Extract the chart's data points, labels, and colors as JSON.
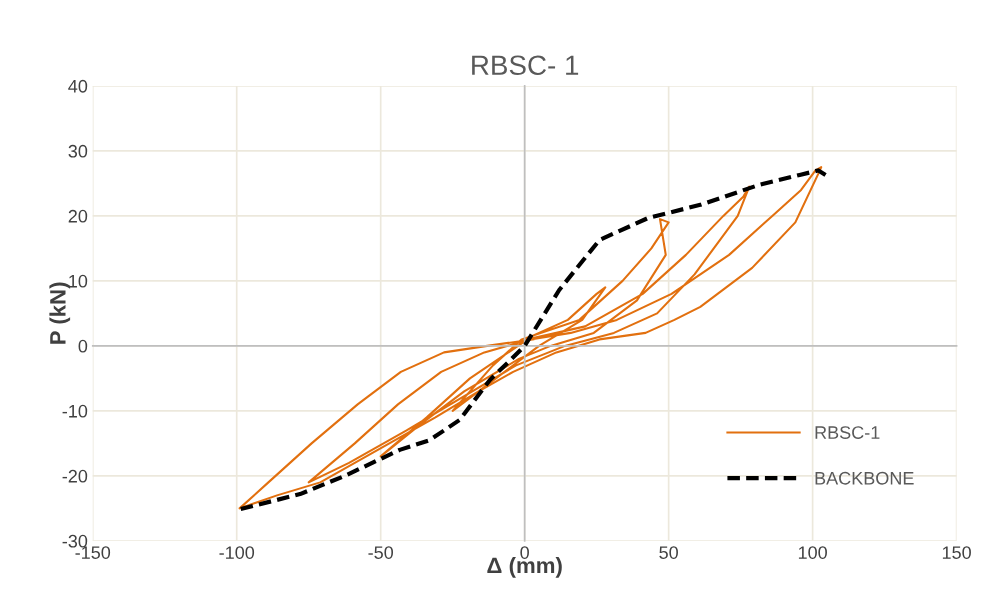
{
  "chart_data": {
    "type": "line",
    "title": "RBSC- 1",
    "xlabel": "Δ (mm)",
    "ylabel": "P (kN)",
    "xlim": [
      -150,
      150
    ],
    "xticks": [
      -150,
      -100,
      -50,
      0,
      50,
      100,
      150
    ],
    "ylim": [
      -30,
      40
    ],
    "yticks": [
      -30,
      -20,
      -10,
      0,
      10,
      20,
      30,
      40
    ],
    "grid": true,
    "legend": "bottom right",
    "series": [
      {
        "name": "RBSC-1",
        "color": "#e2700f",
        "line_style": "solid",
        "x": [
          0,
          15,
          25,
          28,
          20,
          5,
          -10,
          -25,
          -11,
          -1,
          19,
          34,
          44,
          50,
          47,
          49,
          39,
          24,
          9,
          -2,
          -21,
          -36,
          -50,
          -34,
          -19,
          1,
          21,
          41,
          56,
          69,
          76,
          78,
          74,
          59,
          46,
          31,
          14,
          -3,
          -22,
          -41,
          -61,
          -75,
          -59,
          -44,
          -29,
          -14,
          2,
          16,
          32,
          51,
          71,
          86,
          96,
          101,
          103,
          102,
          94,
          79,
          61,
          52,
          42,
          26,
          11,
          -4,
          -16,
          -31,
          -51,
          -71,
          -86,
          -99,
          -89,
          -74,
          -58,
          -43,
          -28,
          -13,
          3
        ],
        "values": [
          1,
          4,
          8,
          9,
          4,
          0,
          -5,
          -10,
          -3,
          1,
          4,
          10,
          15,
          19,
          19.5,
          14,
          7,
          2,
          0,
          -2,
          -7,
          -12,
          -17,
          -11,
          -5,
          1,
          3,
          8,
          14,
          20,
          23,
          24.5,
          20,
          11,
          5,
          2,
          0,
          -3,
          -8,
          -13,
          -18,
          -21,
          -15,
          -9,
          -4,
          -1,
          1,
          2,
          4,
          8,
          14,
          20,
          24,
          27,
          27.5,
          26.5,
          19,
          12,
          6,
          4,
          2,
          1,
          -1,
          -4,
          -7,
          -11,
          -16,
          -21,
          -23,
          -25,
          -21,
          -15,
          -9,
          -4,
          -1,
          0,
          1
        ]
      },
      {
        "name": "BACKBONE",
        "color": "#000000",
        "line_style": "dashed",
        "x": [
          -98.6,
          -78,
          -62.5,
          -43.4,
          -33,
          -22.6,
          -12,
          -5,
          0,
          12,
          26,
          43,
          61,
          81.6,
          95.5,
          102,
          104.5
        ],
        "values": [
          -25.1,
          -22.8,
          -20,
          -16,
          -14.5,
          -11.4,
          -5.2,
          -2.2,
          0,
          8.6,
          16.3,
          19.7,
          21.7,
          24.8,
          26.3,
          27,
          26.3
        ]
      }
    ]
  }
}
